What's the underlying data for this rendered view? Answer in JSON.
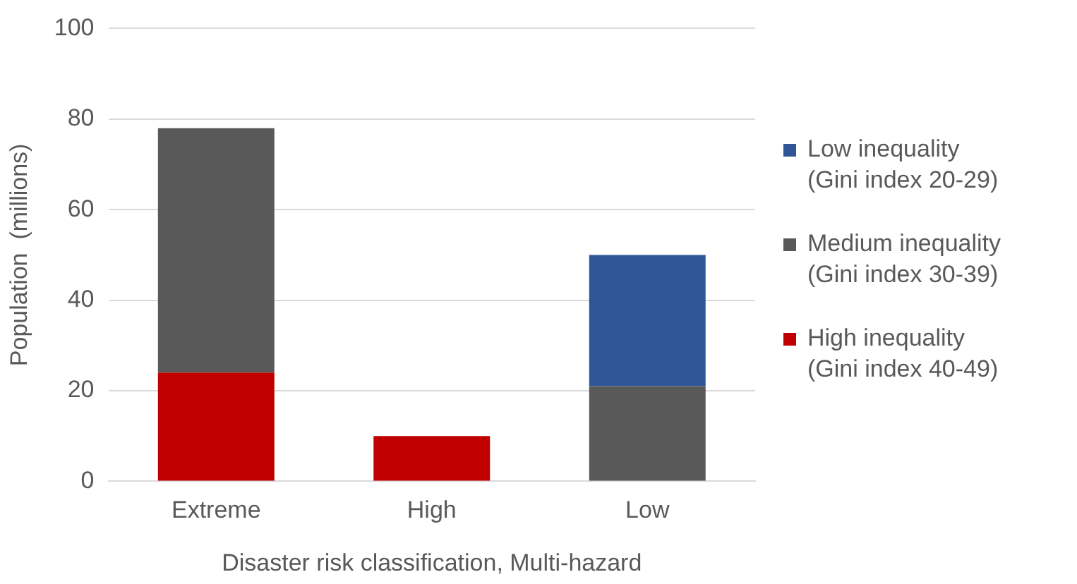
{
  "chart_data": {
    "type": "bar",
    "stacked": true,
    "xlabel": "Disaster risk classification, Multi-hazard",
    "ylabel": "Population  (millions)",
    "categories": [
      "Extreme",
      "High",
      "Low"
    ],
    "series": [
      {
        "name": "High inequality\n(Gini index 40-49)",
        "color": "#c00000",
        "values": [
          24,
          10,
          null
        ]
      },
      {
        "name": "Medium inequality\n(Gini index 30-39)",
        "color": "#595959",
        "values": [
          54,
          null,
          21
        ]
      },
      {
        "name": "Low inequality\n(Gini index 20-29)",
        "color": "#2f5597",
        "values": [
          null,
          null,
          29
        ]
      }
    ],
    "ylim": [
      0,
      100
    ],
    "yticks": [
      0,
      20,
      40,
      60,
      80,
      100
    ],
    "grid": "y",
    "legend": "right"
  }
}
